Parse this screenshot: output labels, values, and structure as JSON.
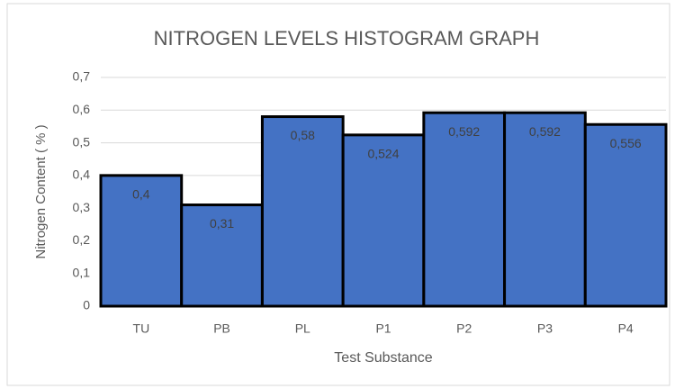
{
  "chart_data": {
    "type": "bar",
    "title": "NITROGEN LEVELS HISTOGRAM GRAPH",
    "x_label": "Test Substance",
    "y_label": "Nitrogen Content ( % )",
    "categories": [
      "TU",
      "PB",
      "PL",
      "P1",
      "P2",
      "P3",
      "P4"
    ],
    "values": [
      0.4,
      0.31,
      0.58,
      0.524,
      0.592,
      0.592,
      0.556
    ],
    "value_labels": [
      "0,4",
      "0,31",
      "0,58",
      "0,524",
      "0,592",
      "0,592",
      "0,556"
    ],
    "color": "#4472c4",
    "ylim": [
      0,
      0.7
    ],
    "yticks": [
      0,
      {
        "value": 0.1,
        "label": "0,1"
      },
      {
        "value": 0.2,
        "label": "0,2"
      },
      {
        "value": 0.3,
        "label": "0,3"
      },
      {
        "value": 0.4,
        "label": "0,4"
      },
      {
        "value": 0.5,
        "label": "0,5"
      },
      {
        "value": 0.6,
        "label": "0,6"
      },
      {
        "value": 0.7,
        "label": "0,7"
      }
    ],
    "grid": true
  }
}
